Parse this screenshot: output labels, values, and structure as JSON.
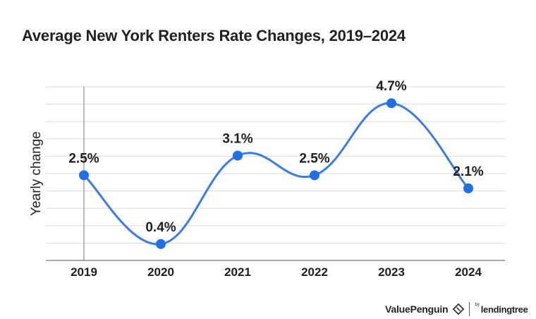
{
  "title": "Average New York Renters Rate Changes, 2019–2024",
  "branding": {
    "valuepenguin": "ValuePenguin",
    "by": "by",
    "lendingtree": "lendingtree"
  },
  "colors": {
    "line": "#3b7be8",
    "point": "#1f6fe5",
    "grid": "#dcdcdc",
    "text": "#1f1f1f"
  },
  "chart_data": {
    "type": "line",
    "title": "Average New York Renters Rate Changes, 2019–2024",
    "xlabel": "",
    "ylabel": "Yearly change",
    "categories": [
      "2019",
      "2020",
      "2021",
      "2022",
      "2023",
      "2024"
    ],
    "series": [
      {
        "values": [
          2.5,
          0.4,
          3.1,
          2.5,
          4.7,
          2.1
        ]
      }
    ],
    "data_labels": [
      "2.5%",
      "0.4%",
      "3.1%",
      "2.5%",
      "4.7%",
      "2.1%"
    ],
    "ylim": [
      -0.1,
      5.2
    ],
    "grid": true,
    "smooth": true,
    "legend": "none"
  }
}
